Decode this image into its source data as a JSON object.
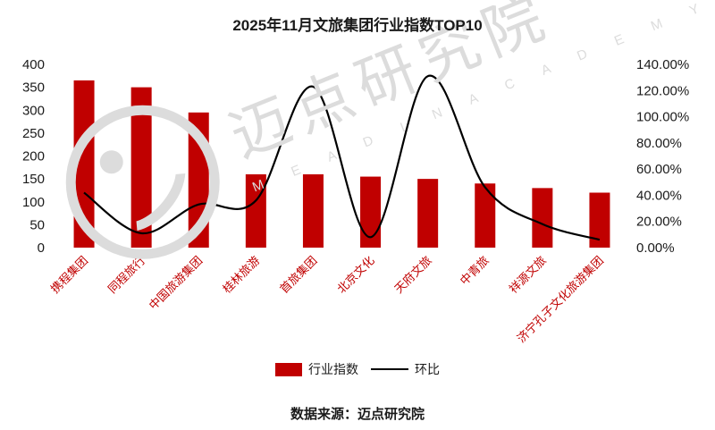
{
  "watermark": {
    "text": "迈点研究院",
    "letters": "M E A D I N   A C A D E M Y"
  },
  "legend": {
    "bar_label": "行业指数",
    "line_label": "环比"
  },
  "footer": {
    "source": "数据来源：迈点研究院"
  },
  "chart_data": {
    "type": "bar",
    "title": "2025年11月文旅集团行业指数TOP10",
    "categories": [
      "携程集团",
      "同程旅行",
      "中国旅游集团",
      "桂林旅游",
      "首旅集团",
      "北京文化",
      "天府文旅",
      "中青旅",
      "祥源文旅",
      "济宁孔子文化旅游集团"
    ],
    "series": [
      {
        "name": "行业指数",
        "type": "bar",
        "axis": "left",
        "color": "#c00000",
        "values": [
          365,
          350,
          295,
          160,
          160,
          155,
          150,
          140,
          130,
          120
        ]
      },
      {
        "name": "环比",
        "type": "line",
        "axis": "right",
        "color": "#000000",
        "values": [
          42,
          11,
          33,
          36,
          123,
          8,
          131,
          46,
          18,
          6
        ]
      }
    ],
    "left_axis": {
      "min": 0,
      "max": 400,
      "step": 50
    },
    "right_axis": {
      "min": 0,
      "max": 140,
      "step": 20,
      "suffix": "%",
      "decimals": 2
    },
    "grid": false,
    "legend_position": "bottom",
    "category_label_color": "#c00000"
  }
}
